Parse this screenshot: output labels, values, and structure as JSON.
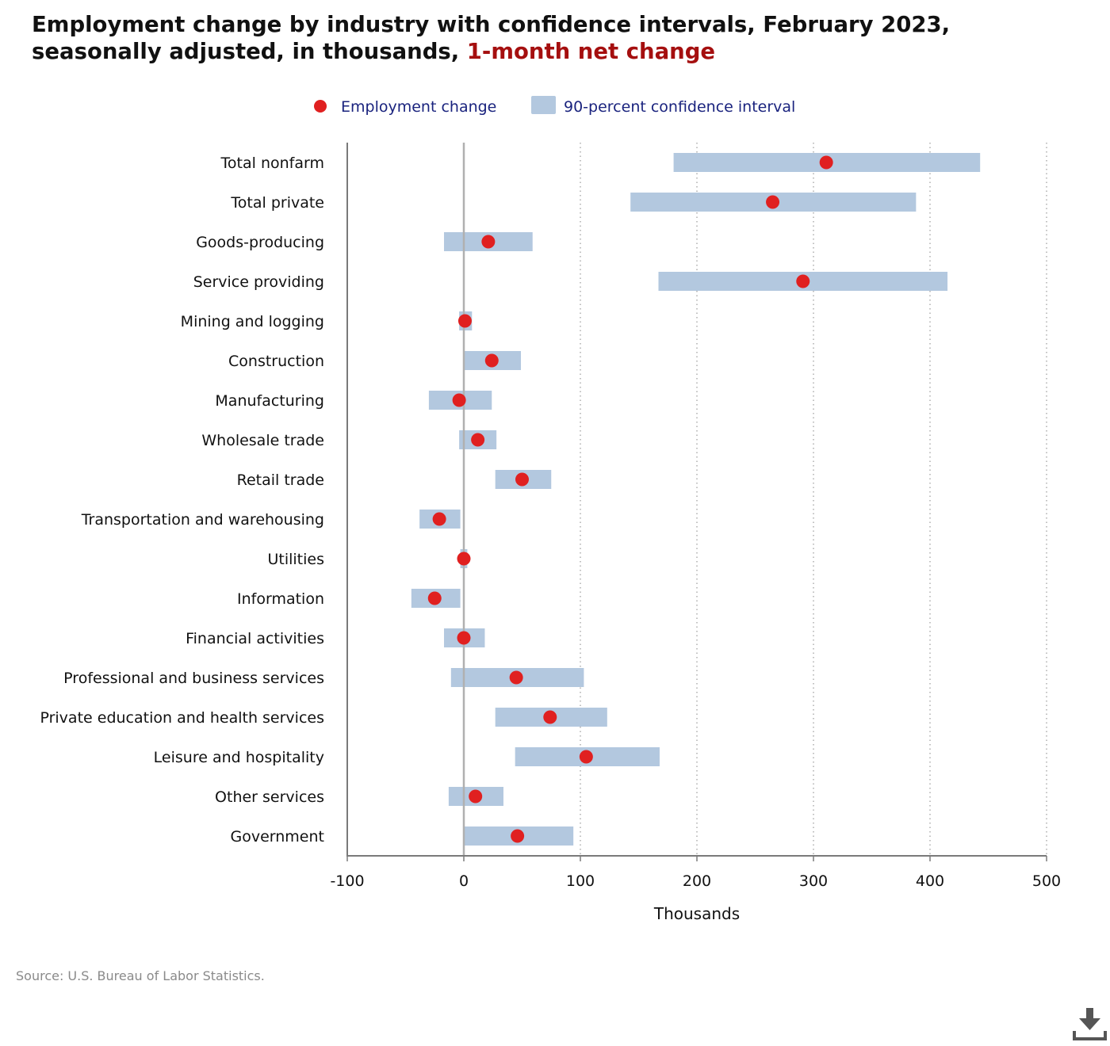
{
  "title": {
    "main": "Employment change by industry with confidence intervals, February 2023, seasonally adjusted, in thousands,",
    "highlight": "1-month net change"
  },
  "legend": {
    "point_label": "Employment change",
    "interval_label": "90-percent confidence interval"
  },
  "source": "Source: U.S. Bureau of Labor Statistics.",
  "download_icon": "download-icon",
  "colors": {
    "point": "#e02020",
    "interval": "#b3c8df",
    "title_accent": "#a50f0f",
    "legend_text": "#1a237e"
  },
  "chart_data": {
    "type": "dot-interval",
    "title": "Employment change by industry with confidence intervals, February 2023, seasonally adjusted, in thousands, 1-month net change",
    "xlabel": "Thousands",
    "ylabel": "",
    "xlim": [
      -100,
      500
    ],
    "xticks": [
      -100,
      0,
      100,
      200,
      300,
      400,
      500
    ],
    "xtick_labels": [
      "-100",
      "0",
      "100",
      "200",
      "300",
      "400",
      "500"
    ],
    "grid": "vertical dotted",
    "legend_position": "top-center",
    "categories": [
      "Total nonfarm",
      "Total private",
      "Goods-producing",
      "Service providing",
      "Mining and logging",
      "Construction",
      "Manufacturing",
      "Wholesale trade",
      "Retail trade",
      "Transportation and warehousing",
      "Utilities",
      "Information",
      "Financial activities",
      "Professional and business services",
      "Private education and health services",
      "Leisure and hospitality",
      "Other services",
      "Government"
    ],
    "series": [
      {
        "name": "Employment change",
        "values": [
          311,
          265,
          21,
          291,
          1,
          24,
          -4,
          12,
          50,
          -21,
          0,
          -25,
          0,
          45,
          74,
          105,
          10,
          46
        ]
      },
      {
        "name": "90-percent confidence interval",
        "low": [
          180,
          143,
          -17,
          167,
          -4,
          0,
          -30,
          -4,
          27,
          -38,
          -3,
          -45,
          -17,
          -11,
          27,
          44,
          -13,
          0
        ],
        "high": [
          443,
          388,
          59,
          415,
          7,
          49,
          24,
          28,
          75,
          -3,
          3,
          -3,
          18,
          103,
          123,
          168,
          34,
          94
        ]
      }
    ]
  }
}
